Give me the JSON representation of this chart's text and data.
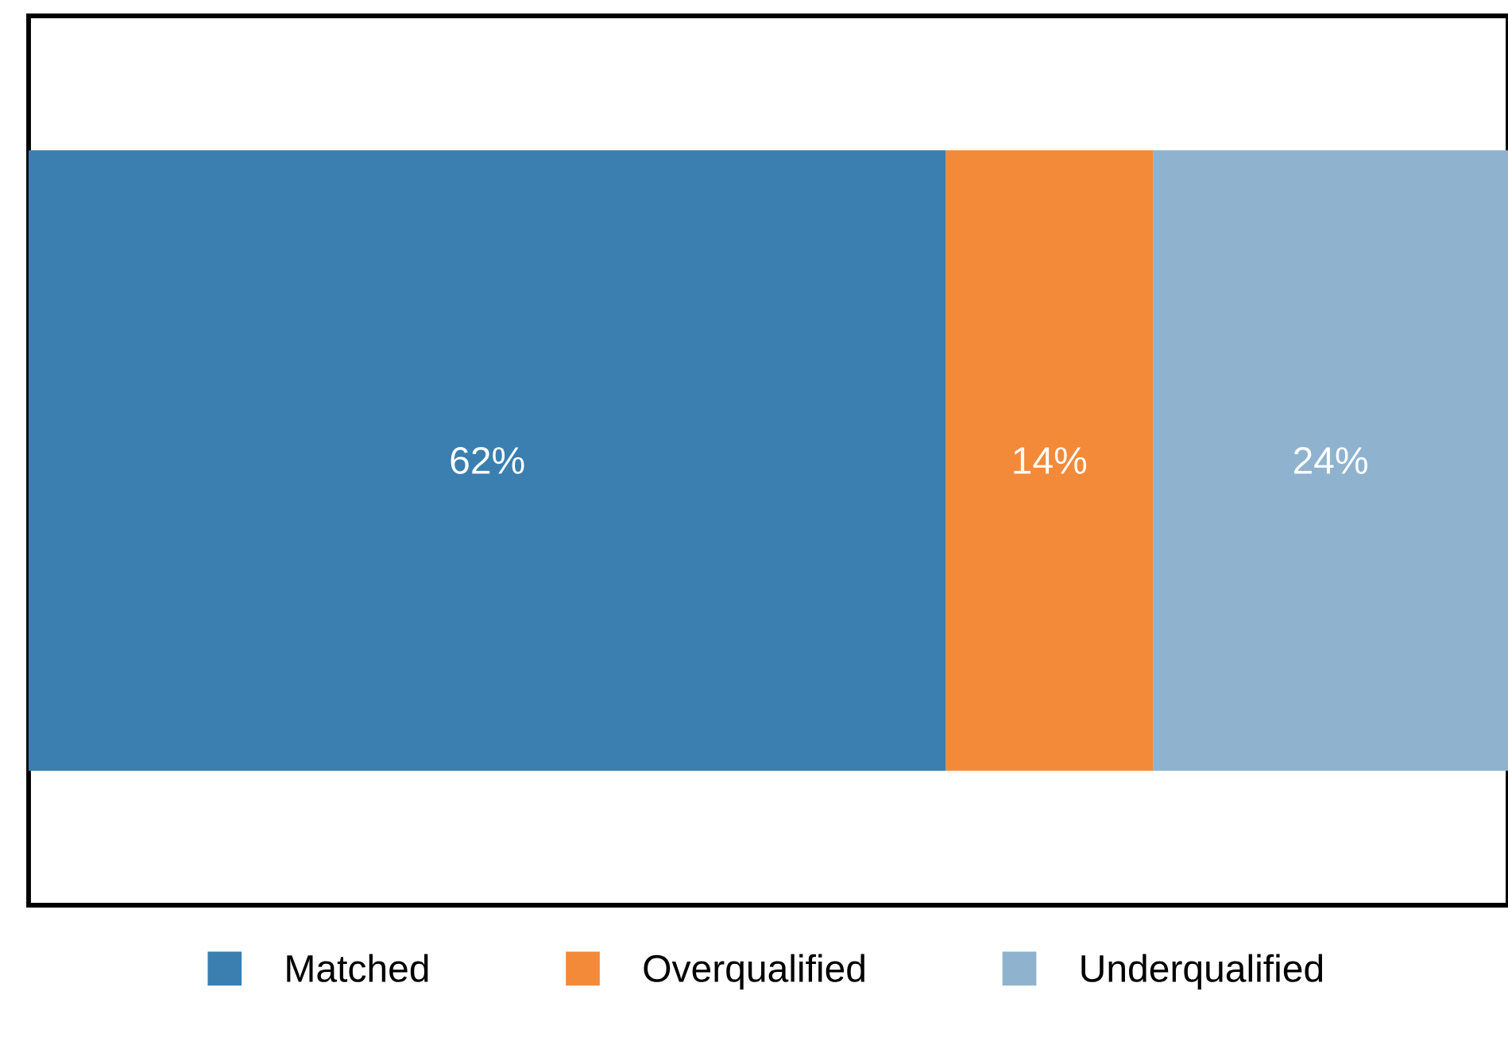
{
  "chart_data": {
    "type": "bar",
    "orientation": "horizontal",
    "stacked": true,
    "categories": [
      null
    ],
    "series": [
      {
        "name": "Matched",
        "color": "#3a7fb0",
        "values": [
          62
        ],
        "value_labels": [
          "62%"
        ]
      },
      {
        "name": "Overqualified",
        "color": "#f28a3a",
        "values": [
          14
        ],
        "value_labels": [
          "14%"
        ]
      },
      {
        "name": "Underqualified",
        "color": "#8fb3cf",
        "values": [
          24
        ],
        "value_labels": [
          "24%"
        ]
      }
    ],
    "xlim": [
      0,
      100
    ],
    "tick_labels": false,
    "legend": "bottom"
  }
}
